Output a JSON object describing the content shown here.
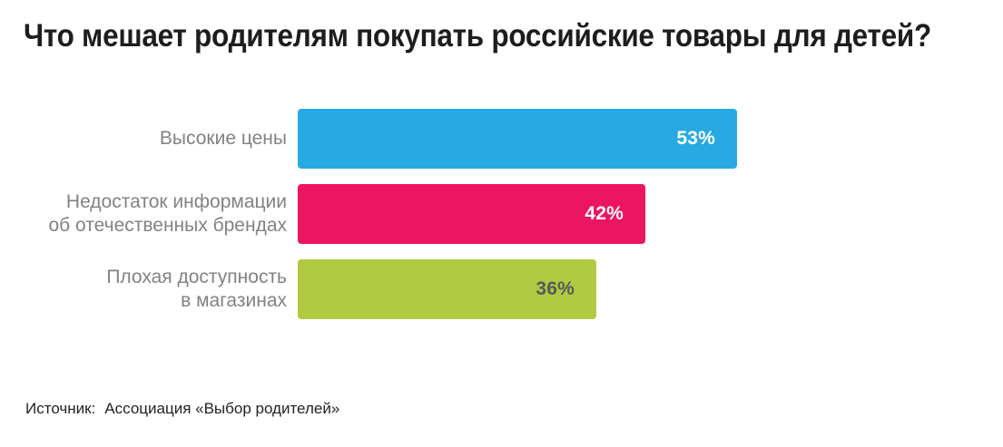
{
  "title": "Что мешает родителям покупать российские товары для детей?",
  "source": {
    "label": "Источник:",
    "value": "Ассоциация «Выбор родителей»"
  },
  "colors": {
    "bar_blue": "#27AAE1",
    "bar_pink": "#EC1561",
    "bar_green": "#B0CB41",
    "label_gray": "#808285",
    "value_white": "#FFFFFF",
    "value_dark_gray": "#58595B",
    "title_black": "#1D1D1B"
  },
  "chart_data": {
    "type": "bar",
    "orientation": "horizontal",
    "title": "Что мешает родителям покупать российские товары для детей?",
    "categories": [
      "Высокие цены",
      "Недостаток информации об отечественных брендах",
      "Плохая доступность в магазинах"
    ],
    "values": [
      53,
      42,
      36
    ],
    "unit": "%",
    "xlim": [
      0,
      100
    ],
    "grid": false,
    "legend": "none",
    "value_labels_position": "inside-end",
    "bars": [
      {
        "label_lines": [
          "Высокие цены"
        ],
        "value": 53,
        "value_label": "53%",
        "color": "#27AAE1",
        "value_color": "#FFFFFF"
      },
      {
        "label_lines": [
          "Недостаток информации",
          "об отечественных брендах"
        ],
        "value": 42,
        "value_label": "42%",
        "color": "#EC1561",
        "value_color": "#FFFFFF"
      },
      {
        "label_lines": [
          "Плохая доступность",
          "в магазинах"
        ],
        "value": 36,
        "value_label": "36%",
        "color": "#B0CB41",
        "value_color": "#58595B"
      }
    ],
    "source": "Источник:  Ассоциация «Выбор родителей»"
  }
}
